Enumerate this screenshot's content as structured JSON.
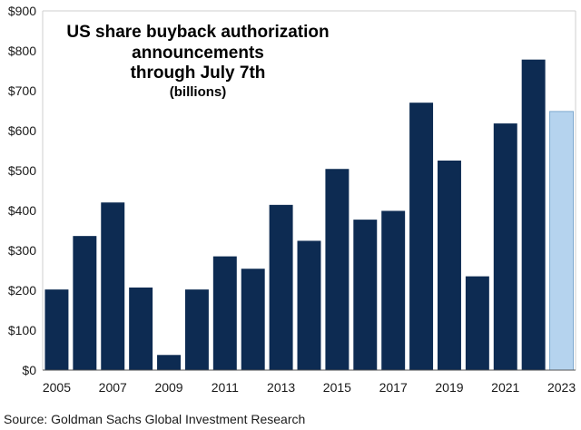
{
  "chart_data": {
    "type": "bar",
    "title_lines": [
      "US share buyback authorization",
      "announcements",
      "through July 7th"
    ],
    "subtitle": "(billions)",
    "categories": [
      "2005",
      "2006",
      "2007",
      "2008",
      "2009",
      "2010",
      "2011",
      "2012",
      "2013",
      "2014",
      "2015",
      "2016",
      "2017",
      "2018",
      "2019",
      "2020",
      "2021",
      "2022",
      "2023"
    ],
    "x_tick_labels": [
      "2005",
      "",
      "2007",
      "",
      "2009",
      "",
      "2011",
      "",
      "2013",
      "",
      "2015",
      "",
      "2017",
      "",
      "2019",
      "",
      "2021",
      "",
      "2023"
    ],
    "values": [
      202,
      336,
      420,
      207,
      38,
      202,
      285,
      254,
      414,
      324,
      504,
      377,
      399,
      670,
      525,
      235,
      618,
      778,
      648
    ],
    "highlight_category": "2023",
    "y_ticks": [
      0,
      100,
      200,
      300,
      400,
      500,
      600,
      700,
      800,
      900
    ],
    "y_tick_labels": [
      "$0",
      "$100",
      "$200",
      "$300",
      "$400",
      "$500",
      "$600",
      "$700",
      "$800",
      "$900"
    ],
    "ylim": [
      0,
      900
    ],
    "xlabel": "",
    "ylabel": "",
    "grid": false,
    "colors": {
      "bar": "#0d2b52",
      "highlight": "#b5d3ee",
      "highlight_edge": "#7fa9cf",
      "axis": "#555555"
    }
  },
  "source": "Source: Goldman Sachs Global Investment Research"
}
